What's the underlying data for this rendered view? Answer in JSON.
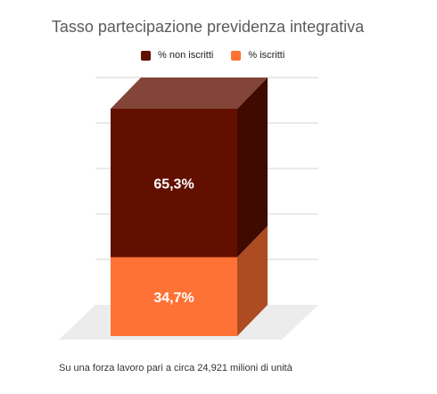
{
  "chart_data": {
    "type": "bar",
    "stacked": true,
    "three_d": true,
    "title": "Tasso partecipazione previdenza integrativa",
    "categories": [
      ""
    ],
    "series": [
      {
        "name": "% iscritti",
        "values": [
          34.7
        ],
        "label": "34,7%",
        "color": "#ff7236",
        "side_color": "#ad4b22",
        "top_color": "#ff8e5e"
      },
      {
        "name": "% non iscritti",
        "values": [
          65.3
        ],
        "label": "65,3%",
        "color": "#620f00",
        "side_color": "#3f0a00",
        "top_color": "#834538"
      }
    ],
    "ylim": [
      0,
      100
    ],
    "grid": true,
    "legend_position": "top",
    "footnote": "Su una forza lavoro pari a circa 24,921 milioni di unità"
  }
}
